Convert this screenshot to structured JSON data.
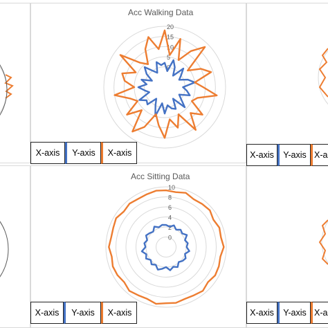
{
  "colors": {
    "x_series": "#4472C4",
    "y_series": "#ED7D31",
    "grid": "#d9d9d9",
    "tick": "#595959"
  },
  "chart_data": [
    {
      "type": "radar",
      "title": "",
      "series": [
        {
          "values": [
            6,
            5,
            6,
            5,
            7
          ]
        }
      ],
      "note": "left edge of panel, mostly cut off"
    },
    {
      "type": "radar",
      "title": "Acc Walking Data",
      "rlim": [
        -10,
        20
      ],
      "rticks": [
        20,
        15,
        10,
        5
      ],
      "grid": true,
      "series": [
        {
          "color": "#4472C4",
          "values": [
            2,
            -2,
            4,
            1,
            -3,
            3,
            0,
            -2,
            2,
            5,
            -1,
            1,
            3,
            -2,
            0,
            4,
            -3,
            2,
            1,
            -1,
            3,
            -2,
            5,
            0,
            -3,
            2,
            1,
            4,
            -2,
            0,
            3,
            -1,
            2,
            -3,
            1,
            4,
            0,
            -2,
            3,
            1
          ]
        },
        {
          "color": "#ED7D31",
          "values": [
            18,
            6,
            15,
            5,
            12,
            18,
            4,
            10,
            14,
            5,
            9,
            16,
            7,
            5,
            13,
            8,
            16,
            5,
            11,
            6,
            15,
            9,
            4,
            12,
            17,
            6,
            13,
            5,
            8,
            15,
            5,
            10,
            12,
            6,
            17,
            7,
            4,
            11,
            16,
            9
          ]
        }
      ]
    },
    {
      "type": "radar",
      "title": "",
      "series": [
        {
          "values": [
            5,
            7,
            4,
            6,
            5
          ]
        }
      ],
      "note": "right edge of panel, mostly cut off"
    },
    {
      "type": "radar",
      "title": "",
      "series": [
        {
          "values": [
            5,
            5,
            5,
            5
          ]
        }
      ],
      "note": "left edge of lower panel, mostly cut off"
    },
    {
      "type": "radar",
      "title": "Acc Sitting Data",
      "rlim": [
        -2,
        10
      ],
      "rticks": [
        10,
        8,
        6,
        4,
        2,
        0
      ],
      "grid": true,
      "series": [
        {
          "color": "#4472C4",
          "values": [
            2.4,
            2.1,
            2.6,
            2.0,
            2.5,
            2.2,
            2.8,
            2.0,
            2.4,
            2.1,
            2.7,
            2.0,
            2.5,
            2.3,
            1.9,
            2.6,
            2.2,
            2.7,
            2.0,
            2.4,
            2.8,
            2.1,
            2.5,
            2.0,
            2.6,
            2.2,
            2.9,
            2.1,
            2.4,
            2.0,
            2.6,
            2.3,
            2.0,
            2.7,
            2.2,
            2.5
          ]
        },
        {
          "color": "#ED7D31",
          "values": [
            9.3,
            9.1,
            9.5,
            9.0,
            9.2,
            9.4,
            8.9,
            9.3,
            9.1,
            9.5,
            9.0,
            9.2,
            9.3,
            8.9,
            9.4,
            9.1,
            9.0,
            9.3,
            9.2,
            9.5,
            9.0,
            9.1,
            9.4,
            8.9,
            9.2,
            9.3,
            9.0,
            9.4,
            9.1,
            9.2,
            9.5,
            9.0,
            9.3,
            9.1,
            9.2,
            9.4
          ]
        }
      ]
    },
    {
      "type": "radar",
      "title": "",
      "series": [
        {
          "values": [
            3,
            4,
            3,
            5
          ]
        }
      ],
      "note": "right edge of lower panel, mostly cut off"
    }
  ],
  "legends": [
    {
      "items": [
        {
          "label": "X-axis",
          "marker": "#4472C4"
        },
        {
          "label": "Y-axis",
          "marker": "#ED7D31"
        },
        {
          "label": "X-axis",
          "marker": ""
        }
      ]
    },
    {
      "items": [
        {
          "label": "X-axis",
          "marker": "#4472C4"
        },
        {
          "label": "Y-axis",
          "marker": "#ED7D31"
        },
        {
          "label": "X-axis",
          "marker": ""
        }
      ]
    },
    {
      "items": [
        {
          "label": "X-axis",
          "marker": "#4472C4"
        },
        {
          "label": "Y-axis",
          "marker": "#ED7D31"
        },
        {
          "label": "X-axis",
          "marker": ""
        }
      ]
    },
    {
      "items": [
        {
          "label": "X-axis",
          "marker": "#4472C4"
        },
        {
          "label": "Y-axis",
          "marker": "#ED7D31"
        },
        {
          "label": "X-axis",
          "marker": ""
        }
      ]
    }
  ]
}
